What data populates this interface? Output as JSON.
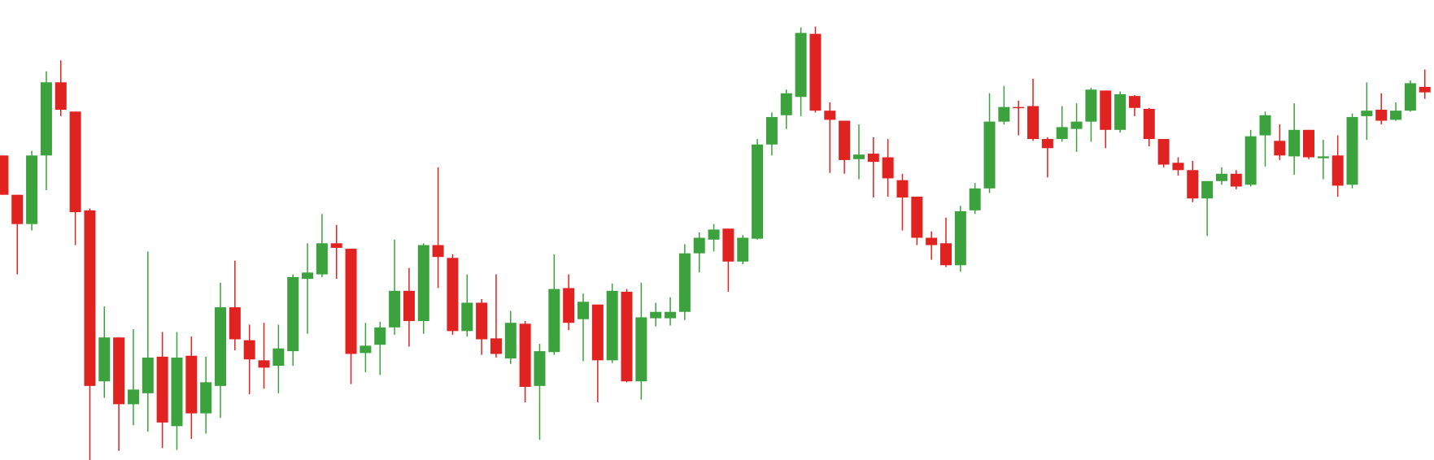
{
  "chart_data": {
    "type": "candlestick",
    "up_color": "#3ba23d",
    "down_color": "#e02221",
    "ylim": [
      0,
      503
    ],
    "open": [
      333,
      290,
      258,
      333,
      413,
      381,
      273,
      86,
      134,
      61,
      73,
      113,
      37,
      114,
      51,
      81,
      167,
      131,
      109,
      103,
      119,
      198,
      203,
      237,
      231,
      117,
      126,
      145,
      185,
      152,
      235,
      221,
      141,
      172,
      133,
      111,
      149,
      81,
      118,
      188,
      154,
      170,
      109,
      184,
      86,
      155,
      155,
      162,
      226,
      241,
      253,
      217,
      242,
      345,
      377,
      397,
      466,
      382,
      371,
      329,
      335,
      331,
      306,
      288,
      243,
      237,
      213,
      273,
      297,
      370,
      386,
      387,
      351,
      351,
      362,
      370,
      404,
      361,
      398,
      384,
      351,
      325,
      317,
      286,
      305,
      313,
      301,
      355,
      349,
      332,
      361,
      330,
      333,
      301,
      376,
      383,
      372,
      382,
      408
    ],
    "high": [
      333,
      290,
      338,
      425,
      437,
      381,
      275,
      168,
      134,
      143,
      228,
      140,
      140,
      135,
      113,
      194,
      218,
      148,
      150,
      148,
      203,
      237,
      269,
      257,
      231,
      150,
      151,
      241,
      210,
      237,
      320,
      225,
      203,
      176,
      203,
      163,
      152,
      127,
      225,
      203,
      182,
      170,
      193,
      187,
      194,
      172,
      178,
      236,
      249,
      258,
      253,
      246,
      351,
      380,
      405,
      473,
      474,
      391,
      371,
      367,
      353,
      351,
      313,
      288,
      250,
      265,
      278,
      303,
      401,
      409,
      393,
      417,
      353,
      387,
      390,
      407,
      404,
      403,
      399,
      385,
      351,
      331,
      327,
      305,
      320,
      317,
      361,
      381,
      367,
      390,
      361,
      350,
      355,
      379,
      413,
      401,
      391,
      415,
      427
    ],
    "low": [
      290,
      203,
      251,
      295,
      376,
      235,
      0,
      68,
      10,
      38,
      31,
      13,
      11,
      23,
      29,
      46,
      120,
      72,
      78,
      73,
      103,
      138,
      200,
      198,
      83,
      96,
      93,
      137,
      124,
      138,
      188,
      137,
      135,
      115,
      112,
      105,
      63,
      22,
      115,
      142,
      108,
      63,
      106,
      85,
      66,
      146,
      147,
      153,
      205,
      228,
      184,
      214,
      241,
      333,
      362,
      376,
      380,
      314,
      313,
      307,
      287,
      288,
      251,
      235,
      219,
      211,
      206,
      269,
      292,
      367,
      355,
      349,
      309,
      348,
      337,
      348,
      341,
      358,
      376,
      343,
      320,
      311,
      282,
      245,
      301,
      296,
      299,
      321,
      328,
      312,
      329,
      307,
      288,
      297,
      350,
      367,
      371,
      381,
      395
    ],
    "close": [
      290,
      258,
      333,
      413,
      383,
      271,
      81,
      134,
      61,
      77,
      112,
      41,
      112,
      51,
      85,
      167,
      132,
      110,
      101,
      122,
      200,
      205,
      237,
      232,
      116,
      125,
      145,
      185,
      152,
      235,
      222,
      141,
      172,
      132,
      116,
      150,
      80,
      119,
      187,
      150,
      173,
      109,
      185,
      86,
      156,
      162,
      162,
      226,
      243,
      252,
      217,
      243,
      345,
      375,
      401,
      467,
      382,
      372,
      328,
      334,
      326,
      308,
      287,
      243,
      235,
      213,
      272,
      297,
      370,
      386,
      385,
      351,
      341,
      364,
      370,
      405,
      361,
      400,
      385,
      351,
      323,
      317,
      286,
      305,
      313,
      299,
      354,
      377,
      333,
      361,
      331,
      332,
      300,
      375,
      382,
      371,
      382,
      412,
      402
    ]
  }
}
